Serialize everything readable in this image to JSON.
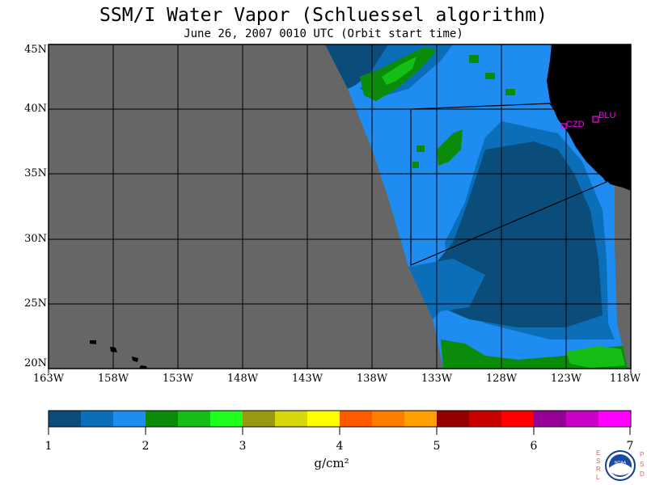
{
  "title": "SSM/I Water Vapor (Schluessel algorithm)",
  "subtitle": "June 26, 2007  0010 UTC  (Orbit start time)",
  "map": {
    "lat_labels": [
      "45N",
      "40N",
      "35N",
      "30N",
      "25N",
      "20N"
    ],
    "lon_labels": [
      "163W",
      "158W",
      "153W",
      "148W",
      "143W",
      "138W",
      "133W",
      "128W",
      "123W",
      "118W"
    ],
    "lat_range": [
      20,
      45
    ],
    "lon_range": [
      -163,
      -118
    ],
    "colors": {
      "no_data": "#666666",
      "land": "#000000",
      "grid": "#000000",
      "station": "#ff00ff"
    },
    "stations": [
      {
        "name": "CZD",
        "lat": 38.6,
        "lon": -123.2
      },
      {
        "name": "BLU",
        "lat": 39.3,
        "lon": -120.8
      }
    ]
  },
  "colorbar": {
    "ticks": [
      "1",
      "2",
      "3",
      "4",
      "5",
      "6",
      "7"
    ],
    "unit": "g/cm²",
    "colors": [
      "#0a4d7a",
      "#0a6fb8",
      "#1e8cf0",
      "#0a8c0a",
      "#14be14",
      "#1eff1e",
      "#999910",
      "#d7d70a",
      "#ffff00",
      "#ff5a00",
      "#ff7d00",
      "#ffa000",
      "#960000",
      "#c80000",
      "#ff0000",
      "#960096",
      "#c800c8",
      "#ff00ff"
    ]
  },
  "logo": {
    "left_text": "ESRL",
    "right_text": "PSD",
    "center_text": "NOAA"
  }
}
